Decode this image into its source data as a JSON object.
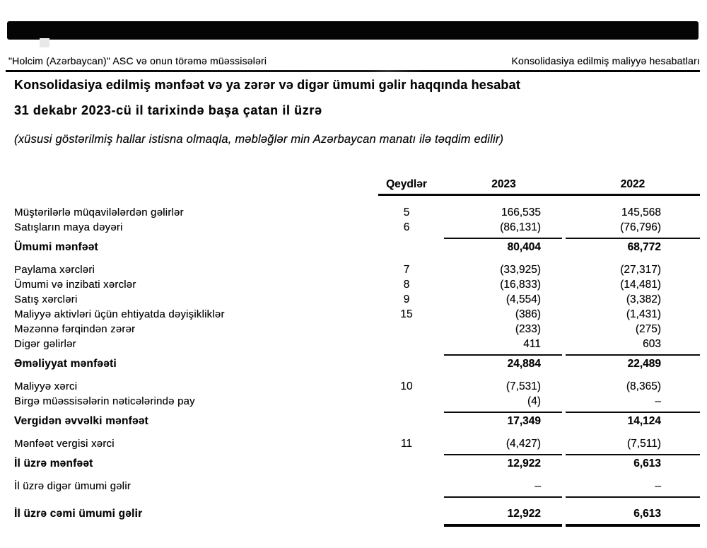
{
  "header": {
    "company": "\"Holcim (Azərbaycan)\" ASC və onun törəmə müəssisələri",
    "report_type": "Konsolidasiya edilmiş maliyyə hesabatları"
  },
  "title": {
    "line1": "Konsolidasiya edilmiş mənfəət və ya zərər və digər ümumi gəlir haqqında hesabat",
    "line2": "31 dekabr 2023-cü il tarixində başa çatan il üzrə",
    "presentation_note": "(xüsusi göstərilmiş hallar istisna olmaqla, məbləğlər min Azərbaycan manatı ilə təqdim edilir)"
  },
  "table": {
    "columns": {
      "notes": "Qeydlər",
      "y2023": "2023",
      "y2022": "2022"
    },
    "rows": [
      {
        "label": "Müştərilərlə müqavilələrdən gəlirlər",
        "note": "5",
        "v2023": "166,535",
        "v2022": "145,568",
        "emphasis": false,
        "rule_after": "none",
        "section_start": false
      },
      {
        "label": "Satışların maya dəyəri",
        "note": "6",
        "v2023": "(86,131)",
        "v2022": "(76,796)",
        "emphasis": false,
        "rule_after": "single",
        "section_start": false
      },
      {
        "label": "Ümumi mənfəət",
        "note": "",
        "v2023": "80,404",
        "v2022": "68,772",
        "emphasis": true,
        "rule_after": "none",
        "section_start": false
      },
      {
        "label": "Paylama xərcləri",
        "note": "7",
        "v2023": "(33,925)",
        "v2022": "(27,317)",
        "emphasis": false,
        "rule_after": "none",
        "section_start": true
      },
      {
        "label": "Ümumi və inzibati xərclər",
        "note": "8",
        "v2023": "(16,833)",
        "v2022": "(14,481)",
        "emphasis": false,
        "rule_after": "none",
        "section_start": false
      },
      {
        "label": "Satış xərcləri",
        "note": "9",
        "v2023": "(4,554)",
        "v2022": "(3,382)",
        "emphasis": false,
        "rule_after": "none",
        "section_start": false
      },
      {
        "label": "Maliyyə aktivləri üçün ehtiyatda dəyişikliklər",
        "note": "15",
        "v2023": "(386)",
        "v2022": "(1,431)",
        "emphasis": false,
        "rule_after": "none",
        "section_start": false
      },
      {
        "label": "Məzənnə fərqindən zərər",
        "note": "",
        "v2023": "(233)",
        "v2022": "(275)",
        "emphasis": false,
        "rule_after": "none",
        "section_start": false
      },
      {
        "label": "Digər gəlirlər",
        "note": "",
        "v2023": "411",
        "v2022": "603",
        "emphasis": false,
        "rule_after": "single",
        "section_start": false
      },
      {
        "label": "Əməliyyat mənfəəti",
        "note": "",
        "v2023": "24,884",
        "v2022": "22,489",
        "emphasis": true,
        "rule_after": "none",
        "section_start": false
      },
      {
        "label": "Maliyyə xərci",
        "note": "10",
        "v2023": "(7,531)",
        "v2022": "(8,365)",
        "emphasis": false,
        "rule_after": "none",
        "section_start": true
      },
      {
        "label": "Birgə müəssisələrin nəticələrində pay",
        "note": "",
        "v2023": "(4)",
        "v2022": "–",
        "emphasis": false,
        "rule_after": "single",
        "section_start": false
      },
      {
        "label": "Vergidən əvvəlki mənfəət",
        "note": "",
        "v2023": "17,349",
        "v2022": "14,124",
        "emphasis": true,
        "rule_after": "none",
        "section_start": false
      },
      {
        "label": "Mənfəət vergisi xərci",
        "note": "11",
        "v2023": "(4,427)",
        "v2022": "(7,511)",
        "emphasis": false,
        "rule_after": "single",
        "section_start": true
      },
      {
        "label": "İl üzrə mənfəət",
        "note": "",
        "v2023": "12,922",
        "v2022": "6,613",
        "emphasis": true,
        "rule_after": "none",
        "section_start": false
      },
      {
        "label": "İl üzrə digər ümumi gəlir",
        "note": "",
        "v2023": "–",
        "v2022": "–",
        "emphasis": false,
        "rule_after": "single",
        "section_start": true
      },
      {
        "label": "İl üzrə cəmi ümumi gəlir",
        "note": "",
        "v2023": "12,922",
        "v2022": "6,613",
        "emphasis": true,
        "rule_after": "thick",
        "section_start": true
      }
    ]
  }
}
